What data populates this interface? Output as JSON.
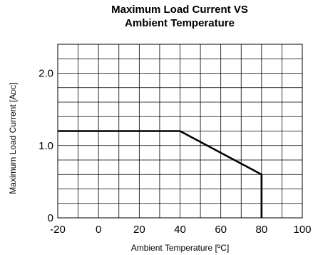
{
  "chart_data": {
    "type": "line",
    "title_lines": [
      "Maximum Load Current VS",
      "Ambient Temperature"
    ],
    "xlabel": "Ambient Temperature [ºC]",
    "ylabel_main": "Maximum Load Current [A",
    "ylabel_sub": "DC",
    "ylabel_end": "]",
    "xlim": [
      -20,
      100
    ],
    "ylim": [
      0,
      2.4
    ],
    "x_ticks": [
      -20,
      0,
      20,
      40,
      60,
      80,
      100
    ],
    "x_tick_labels": [
      "-20",
      "0",
      "20",
      "40",
      "60",
      "80",
      "100"
    ],
    "y_ticks": [
      0,
      1.0,
      2.0
    ],
    "y_tick_labels": [
      "0",
      "1.0",
      "2.0"
    ],
    "x_grid_step": 10,
    "y_grid_step": 0.2,
    "grid": true,
    "series": [
      {
        "x": [
          -20,
          40,
          80,
          80
        ],
        "y": [
          1.2,
          1.2,
          0.6,
          0
        ]
      }
    ]
  }
}
